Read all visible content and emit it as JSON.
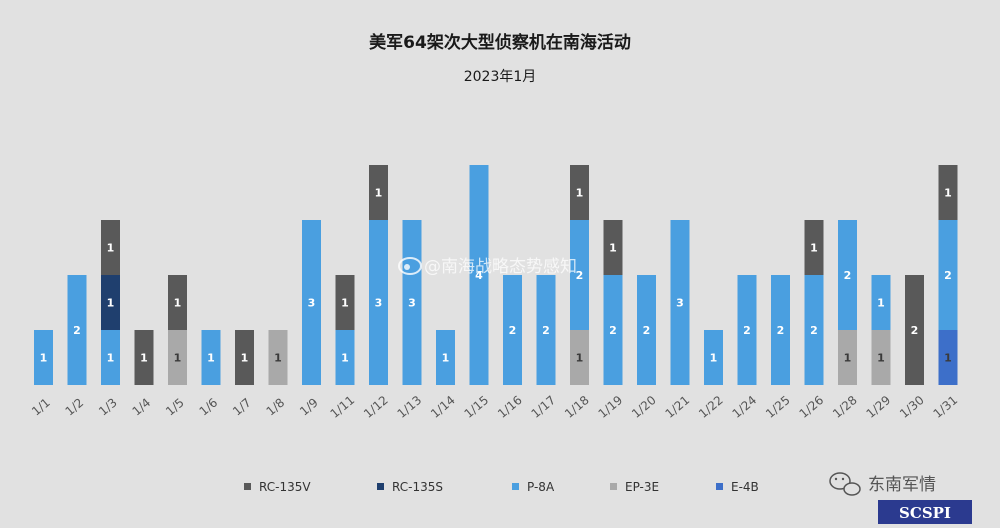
{
  "chart_data": {
    "type": "bar",
    "stacked": true,
    "title": "美军64架次大型侦察机在南海活动",
    "subtitle": "2023年1月",
    "categories": [
      "1/1",
      "1/2",
      "1/3",
      "1/4",
      "1/5",
      "1/6",
      "1/7",
      "1/8",
      "1/9",
      "1/11",
      "1/12",
      "1/13",
      "1/14",
      "1/15",
      "1/16",
      "1/17",
      "1/18",
      "1/19",
      "1/20",
      "1/21",
      "1/22",
      "1/24",
      "1/25",
      "1/26",
      "1/28",
      "1/29",
      "1/30",
      "1/31"
    ],
    "ylim": [
      0,
      4
    ],
    "grid": false,
    "legend_position": "bottom",
    "series": [
      {
        "name": "E-4B",
        "color": "#3d6fc9",
        "values": [
          0,
          0,
          0,
          0,
          0,
          0,
          0,
          0,
          0,
          0,
          0,
          0,
          0,
          0,
          0,
          0,
          0,
          0,
          0,
          0,
          0,
          0,
          0,
          0,
          0,
          0,
          0,
          1
        ]
      },
      {
        "name": "EP-3E",
        "color": "#a9a9a9",
        "values": [
          0,
          0,
          0,
          0,
          1,
          0,
          0,
          1,
          0,
          0,
          0,
          0,
          0,
          0,
          0,
          0,
          1,
          0,
          0,
          0,
          0,
          0,
          0,
          0,
          1,
          1,
          0,
          0
        ]
      },
      {
        "name": "P-8A",
        "color": "#4a9fe0",
        "values": [
          1,
          2,
          1,
          0,
          0,
          1,
          0,
          0,
          3,
          1,
          3,
          3,
          1,
          4,
          2,
          2,
          2,
          2,
          2,
          3,
          1,
          2,
          2,
          2,
          2,
          1,
          0,
          2
        ]
      },
      {
        "name": "RC-135S",
        "color": "#1f3f6e",
        "values": [
          0,
          0,
          1,
          0,
          0,
          0,
          0,
          0,
          0,
          0,
          0,
          0,
          0,
          0,
          0,
          0,
          0,
          0,
          0,
          0,
          0,
          0,
          0,
          0,
          0,
          0,
          0,
          0
        ]
      },
      {
        "name": "RC-135V",
        "color": "#595959",
        "values": [
          0,
          0,
          1,
          1,
          1,
          0,
          1,
          0,
          0,
          1,
          1,
          0,
          0,
          0,
          0,
          0,
          1,
          1,
          0,
          0,
          0,
          0,
          0,
          1,
          0,
          0,
          2,
          1
        ]
      }
    ],
    "legend_order": [
      "RC-135V",
      "RC-135S",
      "P-8A",
      "EP-3E",
      "E-4B"
    ]
  },
  "watermarks": {
    "weibo": "@南海战略态势感知",
    "wechat": "东南军情",
    "logo": "SCSPI"
  }
}
